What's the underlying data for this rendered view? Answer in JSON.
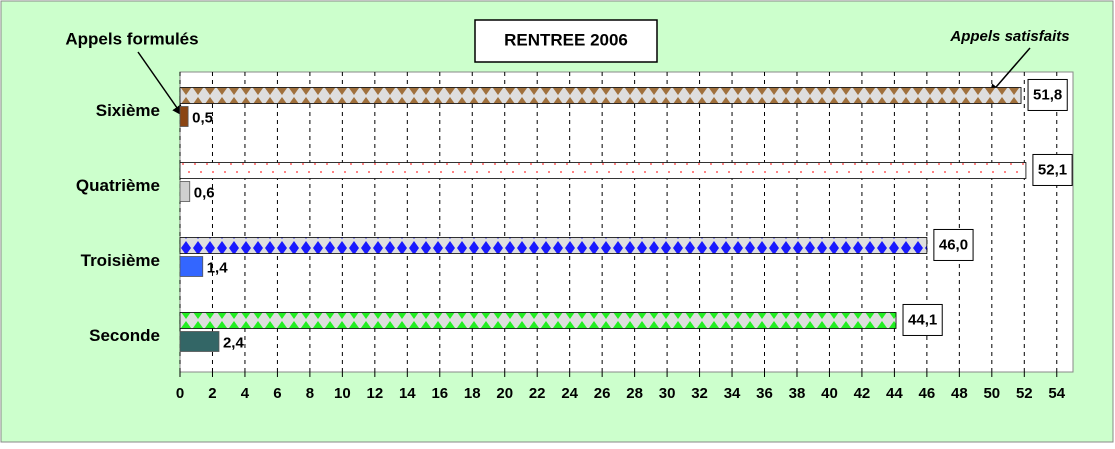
{
  "chart_data": {
    "type": "bar",
    "orientation": "horizontal",
    "title": "RENTREE 2006",
    "categories": [
      "Sixième",
      "Quatrième",
      "Troisième",
      "Seconde"
    ],
    "series": [
      {
        "name": "Appels satisfaits",
        "colors": [
          "#a0703c",
          "#ff6060",
          "#1a1aff",
          "#22ee22"
        ],
        "values": [
          51.8,
          52.1,
          46.0,
          44.1
        ],
        "value_labels": [
          "51,8",
          "52,1",
          "46,0",
          "44,1"
        ]
      },
      {
        "name": "Appels formulés",
        "colors": [
          "#8b4513",
          "#cfcfcf",
          "#3366ff",
          "#336666"
        ],
        "values": [
          0.5,
          0.6,
          1.4,
          2.4
        ],
        "value_labels": [
          "0,5",
          "0,6",
          "1,4",
          "2,4"
        ]
      }
    ],
    "xlim": [
      0,
      55
    ],
    "xticks": [
      0,
      2,
      4,
      6,
      8,
      10,
      12,
      14,
      16,
      18,
      20,
      22,
      24,
      26,
      28,
      30,
      32,
      34,
      36,
      38,
      40,
      42,
      44,
      46,
      48,
      50,
      52,
      54
    ],
    "grid": true
  }
}
